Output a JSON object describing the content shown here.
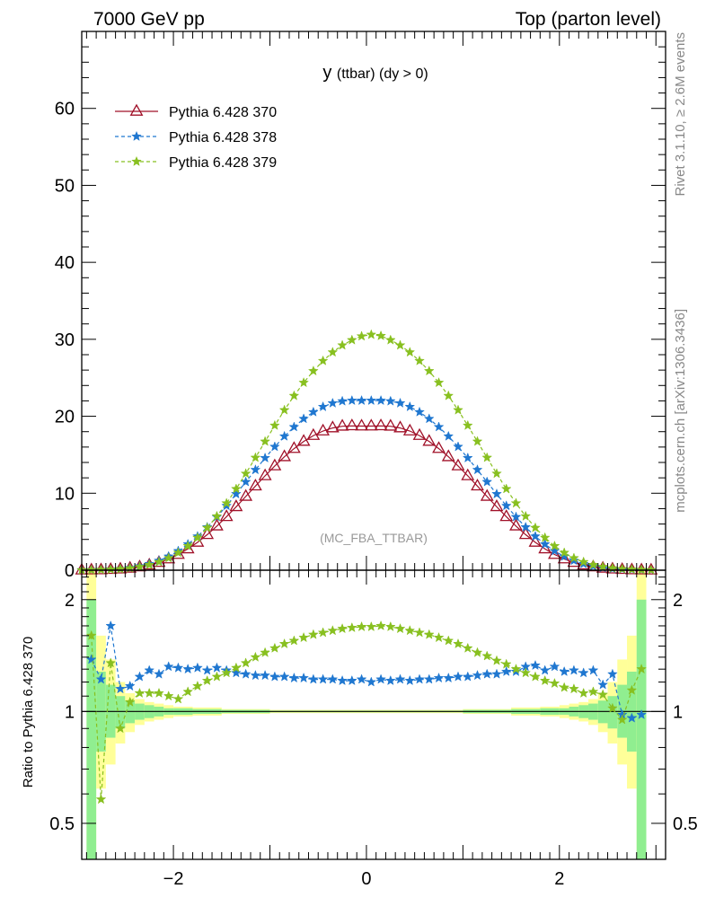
{
  "header": {
    "left": "7000 GeV pp",
    "right": "Top (parton level)"
  },
  "side_labels": {
    "rivet": "Rivet 3.1.10, ≥ 2.6M events",
    "mcplots": "mcplots.cern.ch [arXiv:1306.3436]"
  },
  "plot_title": "y (ttbar) (dy > 0)",
  "watermark": "(MC_FBA_TTBAR)",
  "colors": {
    "p370": "#a01028",
    "p378": "#1f77d0",
    "p379": "#88c020",
    "band_yellow": "#ffff99",
    "band_green": "#90ee90"
  },
  "chart_data": [
    {
      "type": "line",
      "panel": "main",
      "title": "y (ttbar) (dy > 0)",
      "xlabel": "",
      "ylabel": "",
      "xlim": [
        -2.95,
        3.1
      ],
      "ylim": [
        0,
        70
      ],
      "yticks": [
        0,
        10,
        20,
        30,
        40,
        50,
        60
      ],
      "x": [
        -2.95,
        -2.85,
        -2.75,
        -2.65,
        -2.55,
        -2.45,
        -2.35,
        -2.25,
        -2.15,
        -2.05,
        -1.95,
        -1.85,
        -1.75,
        -1.65,
        -1.55,
        -1.45,
        -1.35,
        -1.25,
        -1.15,
        -1.05,
        -0.95,
        -0.85,
        -0.75,
        -0.65,
        -0.55,
        -0.45,
        -0.35,
        -0.25,
        -0.15,
        -0.05,
        0.05,
        0.15,
        0.25,
        0.35,
        0.45,
        0.55,
        0.65,
        0.75,
        0.85,
        0.95,
        1.05,
        1.15,
        1.25,
        1.35,
        1.45,
        1.55,
        1.65,
        1.75,
        1.85,
        1.95,
        2.05,
        2.15,
        2.25,
        2.35,
        2.45,
        2.55,
        2.65,
        2.75,
        2.85,
        2.95
      ],
      "series": [
        {
          "name": "Pythia 6.428 370",
          "marker": "triangle",
          "values": [
            0.01,
            0.02,
            0.04,
            0.08,
            0.14,
            0.25,
            0.42,
            0.66,
            1.0,
            1.45,
            2.04,
            2.76,
            3.62,
            4.62,
            5.73,
            6.95,
            8.24,
            9.58,
            10.93,
            12.26,
            13.54,
            14.73,
            15.8,
            16.73,
            17.49,
            18.08,
            18.48,
            18.7,
            18.75,
            18.72,
            18.72,
            18.75,
            18.7,
            18.48,
            18.08,
            17.49,
            16.73,
            15.8,
            14.73,
            13.54,
            12.26,
            10.93,
            9.58,
            8.24,
            6.95,
            5.73,
            4.62,
            3.62,
            2.76,
            2.04,
            1.45,
            1.0,
            0.66,
            0.42,
            0.25,
            0.14,
            0.08,
            0.04,
            0.02,
            0.01
          ]
        },
        {
          "name": "Pythia 6.428 378",
          "marker": "star",
          "values": [
            0.01,
            0.03,
            0.06,
            0.11,
            0.18,
            0.31,
            0.52,
            0.82,
            1.24,
            1.79,
            2.5,
            3.37,
            4.4,
            5.59,
            6.92,
            8.37,
            9.9,
            11.47,
            13.04,
            14.58,
            16.04,
            17.4,
            18.61,
            19.67,
            20.55,
            21.23,
            21.7,
            21.96,
            22.04,
            22.04,
            22.04,
            22.04,
            21.96,
            21.7,
            21.23,
            20.55,
            19.67,
            18.61,
            17.4,
            16.04,
            14.58,
            13.04,
            11.47,
            9.9,
            8.37,
            6.92,
            5.59,
            4.4,
            3.37,
            2.5,
            1.79,
            1.24,
            0.82,
            0.52,
            0.31,
            0.18,
            0.11,
            0.06,
            0.03,
            0.01
          ]
        },
        {
          "name": "Pythia 6.428 379",
          "marker": "star",
          "values": [
            0.01,
            0.02,
            0.05,
            0.09,
            0.15,
            0.26,
            0.44,
            0.7,
            1.07,
            1.58,
            2.27,
            3.14,
            4.22,
            5.51,
            7.01,
            8.7,
            10.56,
            12.55,
            14.62,
            16.72,
            18.8,
            20.8,
            22.66,
            24.36,
            25.88,
            27.2,
            28.32,
            29.22,
            29.9,
            30.4,
            30.6,
            30.45,
            29.9,
            29.22,
            28.32,
            27.2,
            25.88,
            24.36,
            22.66,
            20.8,
            18.8,
            16.72,
            14.62,
            12.55,
            10.56,
            8.7,
            7.01,
            5.51,
            4.22,
            3.14,
            2.27,
            1.58,
            1.07,
            0.7,
            0.44,
            0.26,
            0.15,
            0.09,
            0.05,
            0.02
          ]
        }
      ]
    },
    {
      "type": "line",
      "panel": "ratio",
      "xlabel": "",
      "ylabel": "Ratio to Pythia 6.428 370",
      "xlim": [
        -2.95,
        3.1
      ],
      "ylim": [
        0.4,
        2.4
      ],
      "log_y": true,
      "yticks": [
        0.5,
        1,
        2
      ],
      "xticks": [
        -2,
        0,
        2
      ],
      "x": [
        -2.85,
        -2.75,
        -2.65,
        -2.55,
        -2.45,
        -2.35,
        -2.25,
        -2.15,
        -2.05,
        -1.95,
        -1.85,
        -1.75,
        -1.65,
        -1.55,
        -1.45,
        -1.35,
        -1.25,
        -1.15,
        -1.05,
        -0.95,
        -0.85,
        -0.75,
        -0.65,
        -0.55,
        -0.45,
        -0.35,
        -0.25,
        -0.15,
        -0.05,
        0.05,
        0.15,
        0.25,
        0.35,
        0.45,
        0.55,
        0.65,
        0.75,
        0.85,
        0.95,
        1.05,
        1.15,
        1.25,
        1.35,
        1.45,
        1.55,
        1.65,
        1.75,
        1.85,
        1.95,
        2.05,
        2.15,
        2.25,
        2.35,
        2.45,
        2.55,
        2.65,
        2.75,
        2.85
      ],
      "series": [
        {
          "name": "Pythia 6.428 378",
          "values": [
            1.38,
            1.22,
            1.7,
            1.15,
            1.17,
            1.24,
            1.29,
            1.26,
            1.32,
            1.31,
            1.3,
            1.31,
            1.29,
            1.31,
            1.29,
            1.27,
            1.26,
            1.25,
            1.25,
            1.24,
            1.24,
            1.23,
            1.23,
            1.22,
            1.22,
            1.22,
            1.21,
            1.21,
            1.22,
            1.2,
            1.22,
            1.21,
            1.22,
            1.21,
            1.22,
            1.22,
            1.23,
            1.23,
            1.24,
            1.24,
            1.25,
            1.26,
            1.26,
            1.28,
            1.28,
            1.32,
            1.33,
            1.29,
            1.32,
            1.28,
            1.29,
            1.27,
            1.29,
            1.18,
            1.26,
            0.98,
            0.96,
            0.98
          ]
        },
        {
          "name": "Pythia 6.428 379",
          "values": [
            1.6,
            0.58,
            1.35,
            0.9,
            1.06,
            1.12,
            1.12,
            1.12,
            1.1,
            1.08,
            1.13,
            1.17,
            1.21,
            1.24,
            1.27,
            1.31,
            1.35,
            1.4,
            1.44,
            1.48,
            1.52,
            1.55,
            1.58,
            1.61,
            1.63,
            1.65,
            1.67,
            1.68,
            1.69,
            1.69,
            1.7,
            1.69,
            1.67,
            1.65,
            1.63,
            1.61,
            1.58,
            1.55,
            1.52,
            1.48,
            1.44,
            1.41,
            1.37,
            1.34,
            1.3,
            1.27,
            1.24,
            1.21,
            1.19,
            1.16,
            1.15,
            1.12,
            1.13,
            1.11,
            1.02,
            0.95,
            1.14,
            1.3
          ]
        }
      ],
      "bands": {
        "x_edges": [
          -2.9,
          -2.8,
          -2.7,
          -2.6,
          -2.5,
          -2.4,
          -2.3,
          -2.2,
          -2.1,
          -2.0,
          -1.8,
          -1.5,
          -1.0,
          1.0,
          1.5,
          1.8,
          2.0,
          2.1,
          2.2,
          2.3,
          2.4,
          2.5,
          2.6,
          2.7,
          2.8,
          2.9
        ],
        "yellow_low": [
          0.35,
          0.62,
          0.72,
          0.82,
          0.88,
          0.92,
          0.94,
          0.95,
          0.96,
          0.97,
          0.975,
          0.985,
          0.99,
          0.985,
          0.975,
          0.97,
          0.96,
          0.95,
          0.94,
          0.92,
          0.88,
          0.82,
          0.72,
          0.62,
          0.35
        ],
        "yellow_high": [
          2.4,
          1.6,
          1.38,
          1.2,
          1.12,
          1.08,
          1.06,
          1.05,
          1.04,
          1.03,
          1.025,
          1.015,
          1.01,
          1.015,
          1.025,
          1.03,
          1.04,
          1.05,
          1.06,
          1.08,
          1.12,
          1.2,
          1.38,
          1.6,
          2.4
        ],
        "green_low": [
          0.35,
          0.78,
          0.85,
          0.9,
          0.93,
          0.95,
          0.96,
          0.97,
          0.98,
          0.98,
          0.985,
          0.99,
          0.995,
          0.99,
          0.985,
          0.98,
          0.98,
          0.97,
          0.96,
          0.95,
          0.93,
          0.9,
          0.85,
          0.78,
          0.35
        ],
        "green_high": [
          2.0,
          1.28,
          1.18,
          1.1,
          1.07,
          1.05,
          1.04,
          1.03,
          1.02,
          1.02,
          1.015,
          1.01,
          1.005,
          1.01,
          1.015,
          1.02,
          1.02,
          1.03,
          1.04,
          1.05,
          1.07,
          1.1,
          1.18,
          1.28,
          2.0
        ]
      }
    }
  ]
}
